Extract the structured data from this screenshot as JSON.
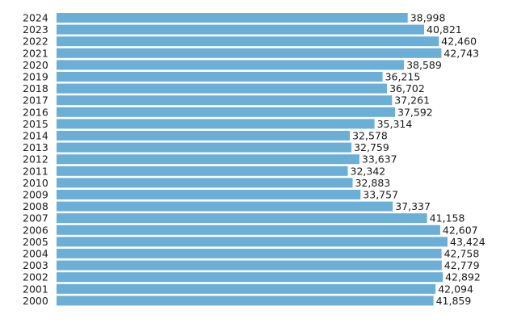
{
  "chart_data": {
    "type": "bar",
    "orientation": "horizontal",
    "categories": [
      "2024",
      "2023",
      "2022",
      "2021",
      "2020",
      "2019",
      "2018",
      "2017",
      "2016",
      "2015",
      "2014",
      "2013",
      "2012",
      "2011",
      "2010",
      "2009",
      "2008",
      "2007",
      "2006",
      "2005",
      "2004",
      "2003",
      "2002",
      "2001",
      "2000"
    ],
    "values": [
      38998,
      40821,
      42460,
      42743,
      38589,
      36215,
      36702,
      37261,
      37592,
      35314,
      32578,
      32759,
      33637,
      32342,
      32883,
      33757,
      37337,
      41158,
      42607,
      43424,
      42758,
      42779,
      42892,
      42094,
      41859
    ],
    "value_labels": [
      "38,998",
      "40,821",
      "42,460",
      "42,743",
      "38,589",
      "36,215",
      "36,702",
      "37,261",
      "37,592",
      "35,314",
      "32,578",
      "32,759",
      "33,637",
      "32,342",
      "32,883",
      "33,757",
      "37,337",
      "41,158",
      "42,607",
      "43,424",
      "42,758",
      "42,779",
      "42,892",
      "42,094",
      "41,859"
    ],
    "xlim": [
      0,
      43424
    ],
    "grid": false,
    "legend": "none",
    "bar_color": "#6baed6"
  }
}
